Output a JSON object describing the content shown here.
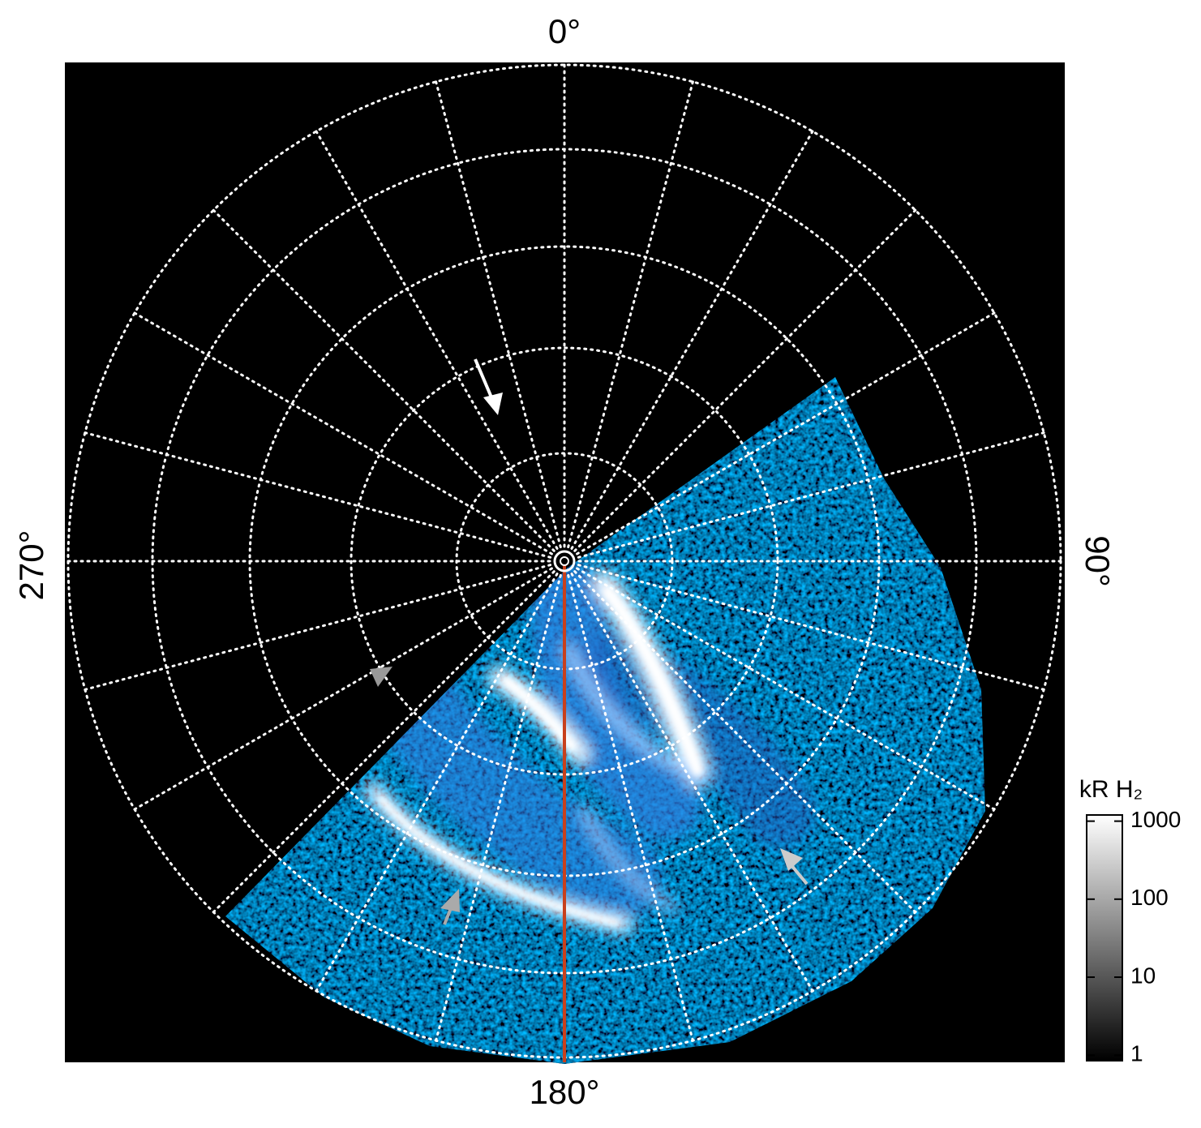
{
  "chart_data": {
    "type": "polar-image",
    "angle_labels": {
      "top": "0°",
      "right": "90°",
      "bottom": "180°",
      "left": "270°"
    },
    "colorbar": {
      "title": "kR H₂",
      "log_scale": true,
      "lim": [
        0.85,
        1200
      ],
      "ticks": [
        1,
        10,
        100,
        1000
      ]
    }
  }
}
